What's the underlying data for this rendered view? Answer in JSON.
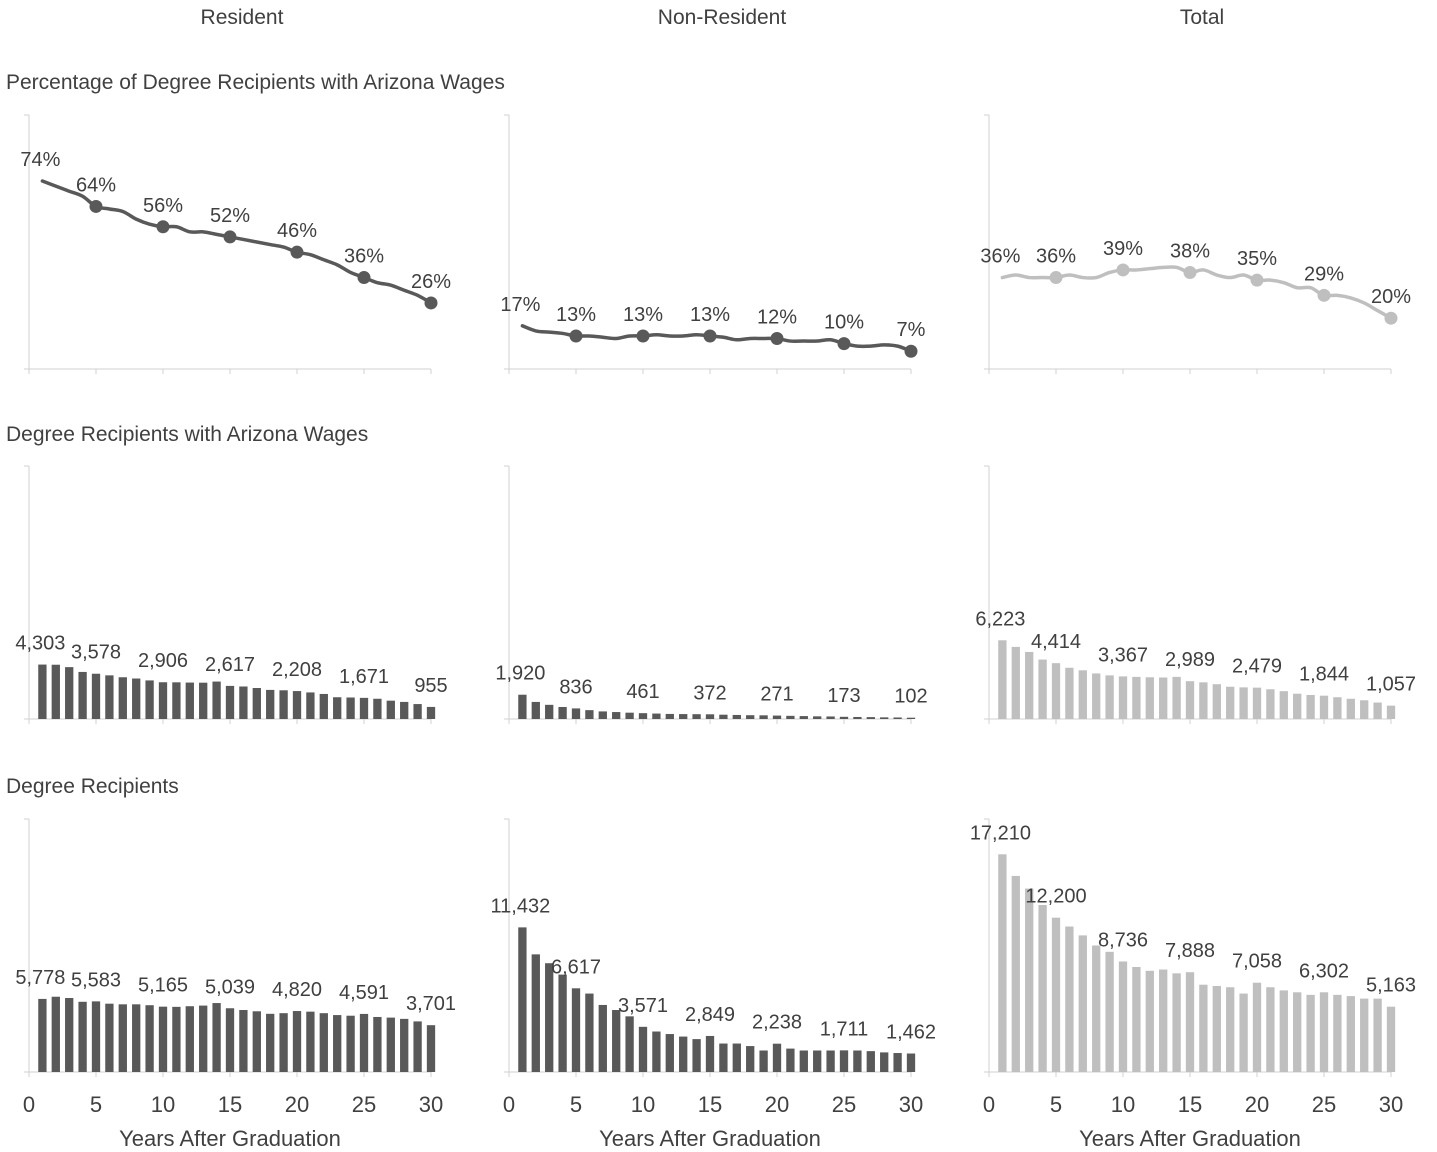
{
  "column_headers": [
    "Resident",
    "Non-Resident",
    "Total"
  ],
  "row_titles": [
    "Percentage of Degree Recipients with Arizona Wages",
    "Degree Recipients with Arizona Wages",
    "Degree Recipients"
  ],
  "colors": {
    "dark": "#595959",
    "light": "#bfbfbf",
    "axis": "#d0d0d0",
    "text": "#404040"
  },
  "chart_data": [
    {
      "type": "line",
      "group": "Resident",
      "metric": "Percentage of Degree Recipients with Arizona Wages",
      "x": [
        1,
        2,
        3,
        4,
        5,
        6,
        7,
        8,
        9,
        10,
        11,
        12,
        13,
        14,
        15,
        16,
        17,
        18,
        19,
        20,
        21,
        22,
        23,
        24,
        25,
        26,
        27,
        28,
        29,
        30
      ],
      "values": [
        0.74,
        0.72,
        0.7,
        0.68,
        0.64,
        0.63,
        0.62,
        0.59,
        0.57,
        0.56,
        0.56,
        0.54,
        0.54,
        0.53,
        0.52,
        0.51,
        0.5,
        0.49,
        0.48,
        0.46,
        0.45,
        0.43,
        0.41,
        0.38,
        0.36,
        0.34,
        0.33,
        0.31,
        0.29,
        0.26
      ],
      "labels": [
        {
          "x": 1,
          "text": "74%"
        },
        {
          "x": 5,
          "text": "64%"
        },
        {
          "x": 10,
          "text": "56%"
        },
        {
          "x": 15,
          "text": "52%"
        },
        {
          "x": 20,
          "text": "46%"
        },
        {
          "x": 25,
          "text": "36%"
        },
        {
          "x": 30,
          "text": "26%"
        }
      ],
      "markers": [
        5,
        10,
        15,
        20,
        25,
        30
      ],
      "ylim": [
        0,
        1
      ],
      "color": "dark"
    },
    {
      "type": "line",
      "group": "Non-Resident",
      "metric": "Percentage of Degree Recipients with Arizona Wages",
      "x": [
        1,
        2,
        3,
        4,
        5,
        6,
        7,
        8,
        9,
        10,
        11,
        12,
        13,
        14,
        15,
        16,
        17,
        18,
        19,
        20,
        21,
        22,
        23,
        24,
        25,
        26,
        27,
        28,
        29,
        30
      ],
      "values": [
        0.17,
        0.15,
        0.145,
        0.14,
        0.13,
        0.13,
        0.125,
        0.12,
        0.13,
        0.13,
        0.135,
        0.13,
        0.13,
        0.135,
        0.13,
        0.125,
        0.115,
        0.12,
        0.12,
        0.12,
        0.11,
        0.11,
        0.11,
        0.115,
        0.1,
        0.09,
        0.09,
        0.095,
        0.09,
        0.07
      ],
      "labels": [
        {
          "x": 1,
          "text": "17%"
        },
        {
          "x": 5,
          "text": "13%"
        },
        {
          "x": 10,
          "text": "13%"
        },
        {
          "x": 15,
          "text": "13%"
        },
        {
          "x": 20,
          "text": "12%"
        },
        {
          "x": 25,
          "text": "10%"
        },
        {
          "x": 30,
          "text": "7%"
        }
      ],
      "markers": [
        5,
        10,
        15,
        20,
        25,
        30
      ],
      "ylim": [
        0,
        1
      ],
      "color": "dark"
    },
    {
      "type": "line",
      "group": "Total",
      "metric": "Percentage of Degree Recipients with Arizona Wages",
      "x": [
        1,
        2,
        3,
        4,
        5,
        6,
        7,
        8,
        9,
        10,
        11,
        12,
        13,
        14,
        15,
        16,
        17,
        18,
        19,
        20,
        21,
        22,
        23,
        24,
        25,
        26,
        27,
        28,
        29,
        30
      ],
      "values": [
        0.36,
        0.37,
        0.36,
        0.36,
        0.36,
        0.37,
        0.36,
        0.36,
        0.38,
        0.39,
        0.39,
        0.395,
        0.4,
        0.4,
        0.38,
        0.39,
        0.37,
        0.36,
        0.37,
        0.35,
        0.35,
        0.34,
        0.32,
        0.32,
        0.29,
        0.29,
        0.28,
        0.26,
        0.23,
        0.2
      ],
      "labels": [
        {
          "x": 1,
          "text": "36%"
        },
        {
          "x": 5,
          "text": "36%"
        },
        {
          "x": 10,
          "text": "39%"
        },
        {
          "x": 15,
          "text": "38%"
        },
        {
          "x": 20,
          "text": "35%"
        },
        {
          "x": 25,
          "text": "29%"
        },
        {
          "x": 30,
          "text": "20%"
        }
      ],
      "markers": [
        5,
        10,
        15,
        20,
        25,
        30
      ],
      "ylim": [
        0,
        1
      ],
      "color": "light"
    },
    {
      "type": "bar",
      "group": "Resident",
      "metric": "Degree Recipients with Arizona Wages",
      "x": [
        1,
        2,
        3,
        4,
        5,
        6,
        7,
        8,
        9,
        10,
        11,
        12,
        13,
        14,
        15,
        16,
        17,
        18,
        19,
        20,
        21,
        22,
        23,
        24,
        25,
        26,
        27,
        28,
        29,
        30
      ],
      "values": [
        4303,
        4290,
        4100,
        3720,
        3578,
        3450,
        3300,
        3200,
        3050,
        2906,
        2900,
        2880,
        2870,
        2960,
        2617,
        2570,
        2450,
        2300,
        2270,
        2208,
        2100,
        1980,
        1720,
        1700,
        1671,
        1600,
        1450,
        1350,
        1180,
        955
      ],
      "labels": [
        {
          "x": 1,
          "text": "4,303"
        },
        {
          "x": 5,
          "text": "3,578"
        },
        {
          "x": 10,
          "text": "2,906"
        },
        {
          "x": 15,
          "text": "2,617"
        },
        {
          "x": 20,
          "text": "2,208"
        },
        {
          "x": 25,
          "text": "1,671"
        },
        {
          "x": 30,
          "text": "955"
        }
      ],
      "ylim": [
        0,
        20000
      ],
      "color": "dark"
    },
    {
      "type": "bar",
      "group": "Non-Resident",
      "metric": "Degree Recipients with Arizona Wages",
      "x": [
        1,
        2,
        3,
        4,
        5,
        6,
        7,
        8,
        9,
        10,
        11,
        12,
        13,
        14,
        15,
        16,
        17,
        18,
        19,
        20,
        21,
        22,
        23,
        24,
        25,
        26,
        27,
        28,
        29,
        30
      ],
      "values": [
        1920,
        1350,
        1120,
        950,
        836,
        700,
        600,
        550,
        500,
        461,
        430,
        400,
        390,
        380,
        372,
        340,
        320,
        300,
        290,
        271,
        250,
        230,
        210,
        200,
        173,
        160,
        150,
        130,
        120,
        102
      ],
      "labels": [
        {
          "x": 1,
          "text": "1,920"
        },
        {
          "x": 5,
          "text": "836"
        },
        {
          "x": 10,
          "text": "461"
        },
        {
          "x": 15,
          "text": "372"
        },
        {
          "x": 20,
          "text": "271"
        },
        {
          "x": 25,
          "text": "173"
        },
        {
          "x": 30,
          "text": "102"
        }
      ],
      "ylim": [
        0,
        20000
      ],
      "color": "dark"
    },
    {
      "type": "bar",
      "group": "Total",
      "metric": "Degree Recipients with Arizona Wages",
      "x": [
        1,
        2,
        3,
        4,
        5,
        6,
        7,
        8,
        9,
        10,
        11,
        12,
        13,
        14,
        15,
        16,
        17,
        18,
        19,
        20,
        21,
        22,
        23,
        24,
        25,
        26,
        27,
        28,
        29,
        30
      ],
      "values": [
        6223,
        5700,
        5300,
        4700,
        4414,
        4050,
        3850,
        3600,
        3450,
        3367,
        3330,
        3300,
        3280,
        3330,
        2989,
        2900,
        2750,
        2550,
        2500,
        2479,
        2350,
        2200,
        2000,
        1900,
        1844,
        1720,
        1600,
        1480,
        1300,
        1057
      ],
      "labels": [
        {
          "x": 1,
          "text": "6,223"
        },
        {
          "x": 5,
          "text": "4,414"
        },
        {
          "x": 10,
          "text": "3,367"
        },
        {
          "x": 15,
          "text": "2,989"
        },
        {
          "x": 20,
          "text": "2,479"
        },
        {
          "x": 25,
          "text": "1,844"
        },
        {
          "x": 30,
          "text": "1,057"
        }
      ],
      "ylim": [
        0,
        20000
      ],
      "color": "light"
    },
    {
      "type": "bar",
      "group": "Resident",
      "metric": "Degree Recipients",
      "x": [
        1,
        2,
        3,
        4,
        5,
        6,
        7,
        8,
        9,
        10,
        11,
        12,
        13,
        14,
        15,
        16,
        17,
        18,
        19,
        20,
        21,
        22,
        23,
        24,
        25,
        26,
        27,
        28,
        29,
        30
      ],
      "values": [
        5778,
        5950,
        5850,
        5550,
        5583,
        5400,
        5350,
        5350,
        5280,
        5165,
        5150,
        5200,
        5250,
        5450,
        5039,
        4900,
        4800,
        4600,
        4650,
        4820,
        4770,
        4650,
        4500,
        4450,
        4591,
        4350,
        4300,
        4200,
        4000,
        3701
      ],
      "labels": [
        {
          "x": 1,
          "text": "5,778"
        },
        {
          "x": 5,
          "text": "5,583"
        },
        {
          "x": 10,
          "text": "5,165"
        },
        {
          "x": 15,
          "text": "5,039"
        },
        {
          "x": 20,
          "text": "4,820"
        },
        {
          "x": 25,
          "text": "4,591"
        },
        {
          "x": 30,
          "text": "3,701"
        }
      ],
      "ylim": [
        0,
        20000
      ],
      "color": "dark"
    },
    {
      "type": "bar",
      "group": "Non-Resident",
      "metric": "Degree Recipients",
      "x": [
        1,
        2,
        3,
        4,
        5,
        6,
        7,
        8,
        9,
        10,
        11,
        12,
        13,
        14,
        15,
        16,
        17,
        18,
        19,
        20,
        21,
        22,
        23,
        24,
        25,
        26,
        27,
        28,
        29,
        30
      ],
      "values": [
        11432,
        9300,
        8600,
        7700,
        6617,
        6200,
        5300,
        4900,
        4400,
        3571,
        3200,
        3000,
        2800,
        2600,
        2849,
        2250,
        2250,
        2050,
        1700,
        2238,
        1850,
        1700,
        1700,
        1700,
        1711,
        1700,
        1650,
        1550,
        1500,
        1462
      ],
      "labels": [
        {
          "x": 1,
          "text": "11,432"
        },
        {
          "x": 5,
          "text": "6,617"
        },
        {
          "x": 10,
          "text": "3,571"
        },
        {
          "x": 15,
          "text": "2,849"
        },
        {
          "x": 20,
          "text": "2,238"
        },
        {
          "x": 25,
          "text": "1,711"
        },
        {
          "x": 30,
          "text": "1,462"
        }
      ],
      "ylim": [
        0,
        20000
      ],
      "color": "dark"
    },
    {
      "type": "bar",
      "group": "Total",
      "metric": "Degree Recipients",
      "x": [
        1,
        2,
        3,
        4,
        5,
        6,
        7,
        8,
        9,
        10,
        11,
        12,
        13,
        14,
        15,
        16,
        17,
        18,
        19,
        20,
        21,
        22,
        23,
        24,
        25,
        26,
        27,
        28,
        29,
        30
      ],
      "values": [
        17210,
        15500,
        14500,
        13200,
        12200,
        11500,
        10800,
        10000,
        9500,
        8736,
        8300,
        8000,
        8100,
        7800,
        7888,
        6900,
        6800,
        6700,
        6200,
        7058,
        6700,
        6450,
        6300,
        6100,
        6302,
        6100,
        6000,
        5800,
        5800,
        5163
      ],
      "labels": [
        {
          "x": 1,
          "text": "17,210"
        },
        {
          "x": 5,
          "text": "12,200"
        },
        {
          "x": 10,
          "text": "8,736"
        },
        {
          "x": 15,
          "text": "7,888"
        },
        {
          "x": 20,
          "text": "7,058"
        },
        {
          "x": 25,
          "text": "6,302"
        },
        {
          "x": 30,
          "text": "5,163"
        }
      ],
      "ylim": [
        0,
        20000
      ],
      "color": "light"
    }
  ],
  "x_axis": {
    "xlim": [
      0,
      30
    ],
    "ticks": [
      "0",
      "5",
      "10",
      "15",
      "20",
      "25",
      "30"
    ],
    "label": "Years After Graduation"
  }
}
